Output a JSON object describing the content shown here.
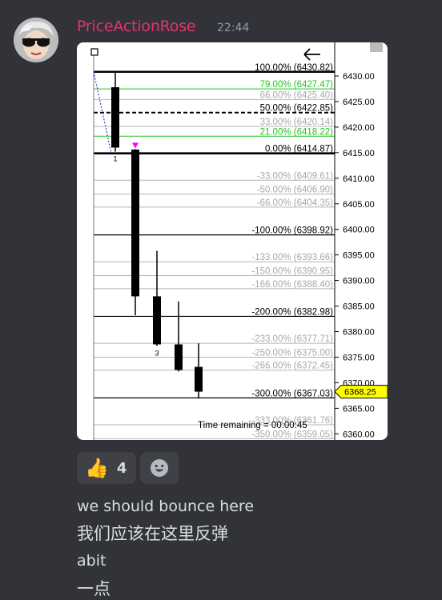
{
  "message": {
    "username": "PriceActionRose",
    "timestamp": "22:44",
    "avatar_icon": "sunglasses-avatar",
    "username_color": "#e4346a"
  },
  "chart_data": {
    "type": "candlestick",
    "title": "",
    "y_axis": {
      "ylim": [
        6358.5,
        6433.5
      ],
      "ticks": [
        6430,
        6425,
        6420,
        6415,
        6410,
        6405,
        6400,
        6395,
        6390,
        6385,
        6380,
        6375,
        6370,
        6365,
        6360
      ],
      "tick_labels": [
        "6430.00",
        "6425.00",
        "6420.00",
        "6415.00",
        "6410.00",
        "6405.00",
        "6400.00",
        "6395.00",
        "6390.00",
        "6385.00",
        "6380.00",
        "6375.00",
        "6370.00",
        "6365.00",
        "6360.00"
      ]
    },
    "fib_levels": [
      {
        "label": "100.00% (6430.82)",
        "price": 6430.82,
        "style": "thick",
        "color": "#000000",
        "text_color": "#000000"
      },
      {
        "label": "79.00% (6427.47)",
        "price": 6427.47,
        "style": "thin",
        "color": "#22c522",
        "text_color": "#22c522"
      },
      {
        "label": "66.00% (6425.40)",
        "price": 6425.4,
        "style": "thin",
        "color": "#b4b4b4",
        "text_color": "#a8a8a8"
      },
      {
        "label": "50.00% (6422.85)",
        "price": 6422.85,
        "style": "dashed",
        "color": "#000000",
        "text_color": "#000000"
      },
      {
        "label": "33.00% (6420.14)",
        "price": 6420.14,
        "style": "thin",
        "color": "#b4b4b4",
        "text_color": "#a8a8a8"
      },
      {
        "label": "21.00% (6418.22)",
        "price": 6418.22,
        "style": "thin",
        "color": "#22c522",
        "text_color": "#22c522"
      },
      {
        "label": "0.00% (6414.87)",
        "price": 6414.87,
        "style": "thick",
        "color": "#000000",
        "text_color": "#000000"
      },
      {
        "label": "-33.00% (6409.61)",
        "price": 6409.61,
        "style": "thin",
        "color": "#b4b4b4",
        "text_color": "#a8a8a8"
      },
      {
        "label": "-50.00% (6406.90)",
        "price": 6406.9,
        "style": "thin",
        "color": "#b4b4b4",
        "text_color": "#a8a8a8"
      },
      {
        "label": "-66.00% (6404.35)",
        "price": 6404.35,
        "style": "thin",
        "color": "#b4b4b4",
        "text_color": "#a8a8a8"
      },
      {
        "label": "-100.00% (6398.92)",
        "price": 6398.92,
        "style": "normal",
        "color": "#000000",
        "text_color": "#000000"
      },
      {
        "label": "-133.00% (6393.66)",
        "price": 6393.66,
        "style": "thin",
        "color": "#b4b4b4",
        "text_color": "#a8a8a8"
      },
      {
        "label": "-150.00% (6390.95)",
        "price": 6390.95,
        "style": "thin",
        "color": "#b4b4b4",
        "text_color": "#a8a8a8"
      },
      {
        "label": "-166.00% (6388.40)",
        "price": 6388.4,
        "style": "thin",
        "color": "#b4b4b4",
        "text_color": "#a8a8a8"
      },
      {
        "label": "-200.00% (6382.98)",
        "price": 6382.98,
        "style": "normal",
        "color": "#000000",
        "text_color": "#000000"
      },
      {
        "label": "-233.00% (6377.71)",
        "price": 6377.71,
        "style": "thin",
        "color": "#b4b4b4",
        "text_color": "#a8a8a8"
      },
      {
        "label": "-250.00% (6375.00)",
        "price": 6375.0,
        "style": "thin",
        "color": "#b4b4b4",
        "text_color": "#a8a8a8"
      },
      {
        "label": "-266.00% (6372.45)",
        "price": 6372.45,
        "style": "thin",
        "color": "#b4b4b4",
        "text_color": "#a8a8a8"
      },
      {
        "label": "-300.00% (6367.03)",
        "price": 6367.03,
        "style": "normal",
        "color": "#000000",
        "text_color": "#000000"
      },
      {
        "label": "-333.00% (6361.76)",
        "price": 6361.76,
        "style": "thin",
        "color": "#b4b4b4",
        "text_color": "#a8a8a8"
      },
      {
        "label": "-350.00% (6359.05)",
        "price": 6359.05,
        "style": "thin",
        "color": "#b4b4b4",
        "text_color": "#a8a8a8"
      }
    ],
    "candles": [
      {
        "open": 6416.0,
        "high": 6430.8,
        "low": 6415.2,
        "close": 6427.8
      },
      {
        "open": 6415.6,
        "high": 6415.7,
        "low": 6383.2,
        "close": 6386.9
      },
      {
        "open": 6386.9,
        "high": 6395.8,
        "low": 6377.2,
        "close": 6377.5
      },
      {
        "open": 6377.5,
        "high": 6385.9,
        "low": 6372.2,
        "close": 6372.5
      },
      {
        "open": 6373.1,
        "high": 6377.7,
        "low": 6366.9,
        "close": 6368.25
      }
    ],
    "bar_labels": [
      {
        "candle": 0,
        "text": "1"
      },
      {
        "candle": 2,
        "text": "3"
      }
    ],
    "marker_color": "#ff00ff",
    "current_price": {
      "value": 6368.25,
      "label": "6368.25",
      "color": "#ffff00"
    },
    "partial_tick_label": "6370.00",
    "time_remaining": "Time remaining = 00:00:45",
    "grid": false,
    "background": "#ffffff"
  },
  "reactions": [
    {
      "emoji": "👍",
      "emoji_name": "thumbs-up",
      "count": "4"
    }
  ],
  "add_reaction_icon": "smiley-face-icon",
  "messages": [
    {
      "text": "we should bounce here",
      "lang": "en"
    },
    {
      "text": "我们应该在这里反弹",
      "lang": "zh"
    },
    {
      "text": "abit",
      "lang": "en"
    },
    {
      "text": "一点",
      "lang": "zh"
    }
  ]
}
